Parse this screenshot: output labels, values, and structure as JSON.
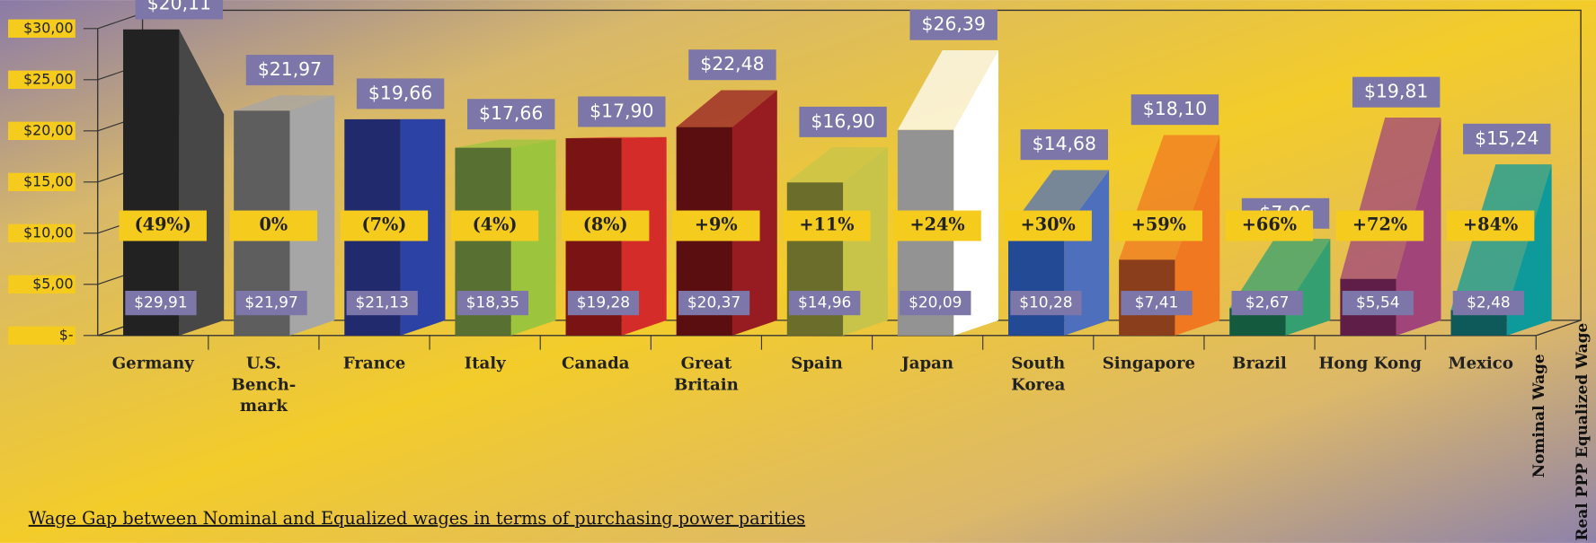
{
  "chart_data": {
    "type": "bar3d",
    "title": "Wage Gap between Nominal and Equalized wages in terms of purchasing power parities",
    "categories": [
      "Germany",
      "U.S.\nBench-\nmark",
      "France",
      "Italy",
      "Canada",
      "Great\nBritain",
      "Spain",
      "Japan",
      "South\nKorea",
      "Singapore",
      "Brazil",
      "Hong Kong",
      "Mexico"
    ],
    "front_colors": [
      "#222222",
      "#5e5e5e",
      "#222a6e",
      "#587032",
      "#7a1414",
      "#5a0e10",
      "#6b6e2a",
      "#939393",
      "#234a94",
      "#8a3e1c",
      "#145a3e",
      "#5e1e48",
      "#0e5a5a"
    ],
    "side_colors": [
      "#474747",
      "#a6a6a6",
      "#2c42a4",
      "#9cc43c",
      "#d42c28",
      "#961c22",
      "#c8c44a",
      "#ffffff",
      "#4e70bc",
      "#f07820",
      "#34a072",
      "#a0447a",
      "#0e9a9a"
    ],
    "series": [
      {
        "name": "Nominal Wage",
        "values": [
          29.91,
          21.97,
          21.13,
          18.35,
          19.28,
          20.37,
          14.96,
          20.09,
          10.28,
          7.41,
          2.67,
          5.54,
          2.48
        ],
        "value_labels": [
          "$29,91",
          "$21,97",
          "$21,13",
          "$18,35",
          "$19,28",
          "$20,37",
          "$14,96",
          "$20,09",
          "$10,28",
          "$7,41",
          "$2,67",
          "$5,54",
          "$2,48"
        ]
      },
      {
        "name": "Real PPP Equalized Wage",
        "values": [
          20.11,
          21.97,
          19.66,
          17.66,
          17.9,
          22.48,
          16.9,
          26.39,
          14.68,
          18.1,
          7.96,
          19.81,
          15.24
        ],
        "value_labels": [
          "$20,11",
          "$21,97",
          "$19,66",
          "$17,66",
          "$17,90",
          "$22,48",
          "$16,90",
          "$26,39",
          "$14,68",
          "$18,10",
          "$7,96",
          "$19,81",
          "$15,24"
        ]
      }
    ],
    "gap": {
      "values": [
        -49,
        0,
        -7,
        -4,
        -8,
        9,
        11,
        24,
        30,
        59,
        66,
        72,
        84
      ],
      "value_labels": [
        "(49%)",
        "0%",
        "(7%)",
        "(4%)",
        "(8%)",
        "+9%",
        "+11%",
        "+24%",
        "+30%",
        "+59%",
        "+66%",
        "+72%",
        "+84%"
      ]
    },
    "ylim": [
      0,
      30
    ],
    "yticks": [
      {
        "value": 0,
        "label": "$-"
      },
      {
        "value": 5,
        "label": "$5,00"
      },
      {
        "value": 10,
        "label": "$10,00"
      },
      {
        "value": 15,
        "label": "$15,00"
      },
      {
        "value": 20,
        "label": "$20,00"
      },
      {
        "value": 25,
        "label": "$25,00"
      },
      {
        "value": 30,
        "label": "$30,00"
      }
    ]
  }
}
